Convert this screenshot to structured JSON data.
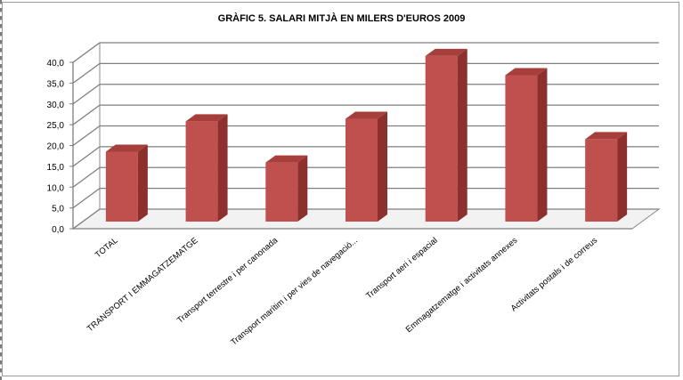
{
  "chart_data": {
    "type": "bar",
    "title": "GRÀFIC 5. SALARI MITJÀ EN MILERS D'EUROS 2009",
    "categories": [
      "TOTAL",
      "TRANSPORT I EMMAGATZEMATGE",
      "Transport terrestre i per canonada",
      "Transport marítim i per vies de navegació...",
      "Transport aeri i espacial",
      "Emmagatzematge i activitats annexes",
      "Activitats postals i de correus"
    ],
    "values": [
      16.8,
      24.1,
      14.2,
      24.7,
      39.8,
      35.2,
      19.8
    ],
    "ylim": [
      0,
      40
    ],
    "yticks": [
      "0,0",
      "5,0",
      "10,0",
      "15,0",
      "20,0",
      "25,0",
      "30,0",
      "35,0",
      "40,0"
    ],
    "xlabel": "",
    "ylabel": "",
    "grid": true,
    "bar_color": "#c0504d",
    "bar_side_color": "#8c2f2d",
    "bar_top_color": "#a63e3b"
  }
}
